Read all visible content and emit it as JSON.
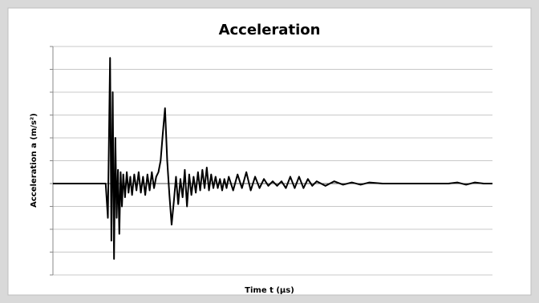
{
  "chart_data": {
    "type": "line",
    "title": "Acceleration",
    "x_label": "Time t (µs)",
    "y_label": "Acceleration a (m/s²)",
    "x": [
      0,
      12,
      12.5,
      13,
      13.3,
      13.6,
      13.9,
      14.2,
      14.5,
      14.8,
      15.1,
      15.4,
      15.7,
      16,
      16.4,
      16.8,
      17.2,
      17.6,
      18,
      18.5,
      19,
      19.5,
      20,
      20.5,
      21,
      21.5,
      22,
      22.5,
      23,
      23.5,
      24,
      24.5,
      25,
      25.5,
      26,
      26.5,
      27,
      27.5,
      28,
      28.5,
      29,
      29.5,
      30,
      30.5,
      31,
      31.5,
      32,
      32.5,
      33,
      33.5,
      34,
      34.5,
      35,
      35.5,
      36,
      36.5,
      37,
      37.5,
      38,
      38.5,
      39,
      39.5,
      40,
      41,
      42,
      43,
      44,
      45,
      46,
      47,
      48,
      49,
      50,
      51,
      52,
      53,
      54,
      55,
      56,
      57,
      58,
      59,
      60,
      62,
      64,
      66,
      68,
      70,
      72,
      75,
      80,
      85,
      90,
      92,
      94,
      96,
      98,
      100
    ],
    "series": [
      {
        "color": "#000000",
        "values": [
          0,
          0,
          -1.5,
          5.5,
          -2.5,
          4,
          -3.3,
          2,
          -1.5,
          0.6,
          -2.2,
          0.5,
          -1,
          0.4,
          -0.6,
          0.5,
          -0.4,
          0.3,
          -0.5,
          0.4,
          -0.3,
          0.5,
          -0.4,
          0.3,
          -0.5,
          0.4,
          -0.3,
          0.5,
          -0.2,
          0.3,
          0.5,
          1,
          2.2,
          3.3,
          1,
          -0.5,
          -1.8,
          -0.8,
          0.3,
          -0.9,
          0.2,
          -0.6,
          0.6,
          -1,
          0.4,
          -0.5,
          0.3,
          -0.4,
          0.5,
          -0.3,
          0.6,
          -0.2,
          0.7,
          -0.3,
          0.4,
          -0.2,
          0.3,
          -0.2,
          0.2,
          -0.3,
          0.2,
          -0.2,
          0.3,
          -0.3,
          0.4,
          -0.2,
          0.5,
          -0.3,
          0.3,
          -0.2,
          0.2,
          -0.1,
          0.1,
          -0.1,
          0.1,
          -0.2,
          0.3,
          -0.2,
          0.3,
          -0.2,
          0.2,
          -0.1,
          0.1,
          -0.1,
          0.1,
          -0.05,
          0.05,
          -0.05,
          0.05,
          0,
          0,
          0,
          0,
          0.05,
          -0.05,
          0.05,
          0,
          0
        ]
      }
    ],
    "xlim": [
      0,
      100
    ],
    "ylim": [
      -4,
      6
    ],
    "yticks": [
      -4,
      -3,
      -2,
      -1,
      0,
      1,
      2,
      3,
      4,
      5,
      6
    ],
    "grid": true
  }
}
